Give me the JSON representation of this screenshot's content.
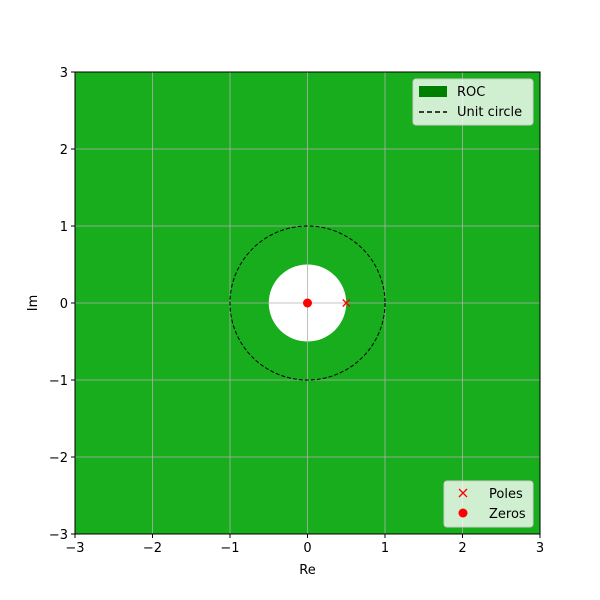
{
  "chart_data": {
    "type": "scatter",
    "title": "",
    "xlabel": "Re",
    "ylabel": "Im",
    "xlim": [
      -3,
      3
    ],
    "ylim": [
      -3,
      3
    ],
    "xticks": [
      "−3",
      "−2",
      "−1",
      "0",
      "1",
      "2",
      "3"
    ],
    "yticks": [
      "−3",
      "−2",
      "−1",
      "0",
      "1",
      "2",
      "3"
    ],
    "grid": true,
    "roc": {
      "inner_radius": 0.5,
      "outer_radius": "infinity",
      "color": "#17ad1c"
    },
    "unit_circle": {
      "radius": 1
    },
    "series": [
      {
        "name": "Poles",
        "marker": "x",
        "color": "#ff0000",
        "points": [
          [
            0.5,
            0
          ]
        ]
      },
      {
        "name": "Zeros",
        "marker": "o",
        "color": "#ff0000",
        "points": [
          [
            0,
            0
          ]
        ]
      }
    ],
    "legends": [
      {
        "placement": "top-right",
        "entries": [
          "ROC",
          "Unit circle"
        ]
      },
      {
        "placement": "bottom-right",
        "entries": [
          "Poles",
          "Zeros"
        ]
      }
    ]
  },
  "legend_top": {
    "roc_label": "ROC",
    "unit_circle_label": "Unit circle"
  },
  "legend_bottom": {
    "poles_label": "Poles",
    "zeros_label": "Zeros"
  }
}
